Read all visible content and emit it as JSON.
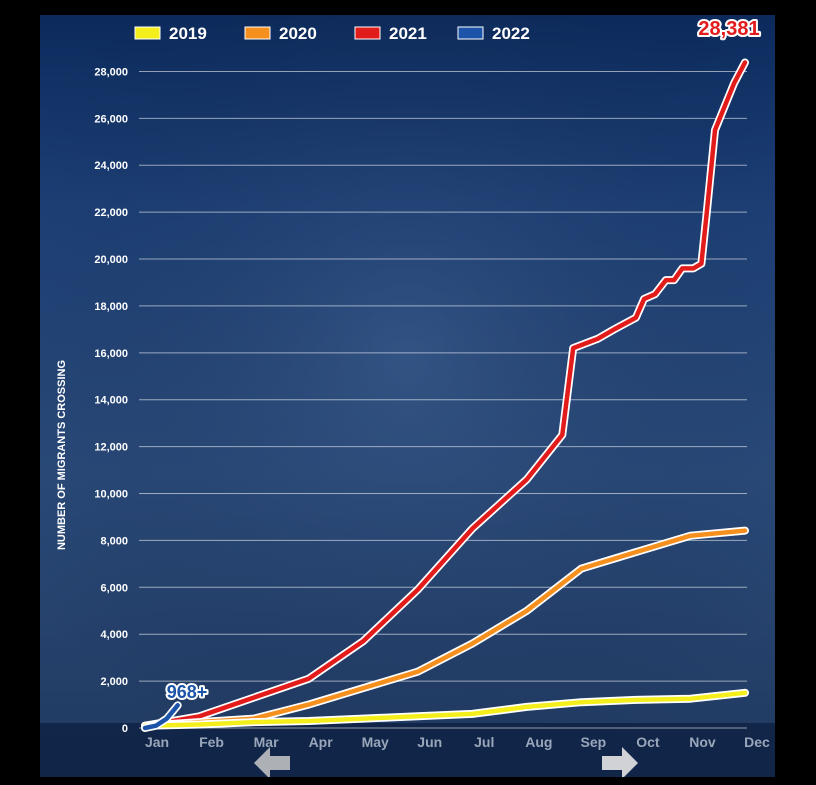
{
  "chart_data": {
    "type": "line",
    "ylabel": "NUMBER OF MIGRANTS CROSSING",
    "ylim": [
      0,
      29000
    ],
    "yticks": [
      0,
      2000,
      4000,
      6000,
      8000,
      10000,
      12000,
      14000,
      16000,
      18000,
      20000,
      22000,
      24000,
      26000,
      28000
    ],
    "ytick_labels": [
      "0",
      "2,000",
      "4,000",
      "6,000",
      "8,000",
      "10,000",
      "12,000",
      "14,000",
      "16,000",
      "18,000",
      "20,000",
      "22,000",
      "24,000",
      "26,000",
      "28,000"
    ],
    "categories": [
      "Jan",
      "Feb",
      "Mar",
      "Apr",
      "May",
      "Jun",
      "Jul",
      "Aug",
      "Sep",
      "Oct",
      "Nov",
      "Dec"
    ],
    "grid": true,
    "legend_position": "top",
    "series": [
      {
        "name": "2019",
        "color": "#f4ef1c",
        "points": [
          [
            0.0,
            100
          ],
          [
            1.0,
            150
          ],
          [
            2.0,
            250
          ],
          [
            3.0,
            300
          ],
          [
            4.0,
            400
          ],
          [
            5.0,
            500
          ],
          [
            6.0,
            600
          ],
          [
            7.0,
            900
          ],
          [
            8.0,
            1100
          ],
          [
            9.0,
            1200
          ],
          [
            10.0,
            1250
          ],
          [
            11.0,
            1500
          ]
        ]
      },
      {
        "name": "2020",
        "color": "#f5901f",
        "points": [
          [
            0.0,
            100
          ],
          [
            1.0,
            250
          ],
          [
            2.0,
            400
          ],
          [
            3.0,
            1000
          ],
          [
            4.0,
            1700
          ],
          [
            5.0,
            2400
          ],
          [
            6.0,
            3600
          ],
          [
            7.0,
            5000
          ],
          [
            8.0,
            6800
          ],
          [
            9.0,
            7500
          ],
          [
            10.0,
            8200
          ],
          [
            11.0,
            8420
          ]
        ]
      },
      {
        "name": "2021",
        "color": "#e21b1b",
        "points": [
          [
            0.0,
            100
          ],
          [
            1.0,
            500
          ],
          [
            2.0,
            1300
          ],
          [
            3.0,
            2100
          ],
          [
            4.0,
            3700
          ],
          [
            5.0,
            5900
          ],
          [
            6.0,
            8500
          ],
          [
            7.0,
            10600
          ],
          [
            7.65,
            12500
          ],
          [
            7.85,
            16200
          ],
          [
            8.3,
            16600
          ],
          [
            8.6,
            17000
          ],
          [
            9.0,
            17500
          ],
          [
            9.15,
            18300
          ],
          [
            9.35,
            18500
          ],
          [
            9.55,
            19100
          ],
          [
            9.7,
            19100
          ],
          [
            9.85,
            19600
          ],
          [
            10.05,
            19600
          ],
          [
            10.2,
            19800
          ],
          [
            10.3,
            22000
          ],
          [
            10.45,
            25500
          ],
          [
            10.8,
            27500
          ],
          [
            11.0,
            28381
          ]
        ]
      },
      {
        "name": "2022",
        "color": "#1b54a8",
        "points": [
          [
            0.0,
            0
          ],
          [
            0.2,
            100
          ],
          [
            0.4,
            400
          ],
          [
            0.6,
            968
          ]
        ]
      }
    ],
    "annotations": [
      {
        "text": "28,381",
        "series": "2021"
      },
      {
        "text": "968+",
        "series": "2022"
      }
    ]
  }
}
